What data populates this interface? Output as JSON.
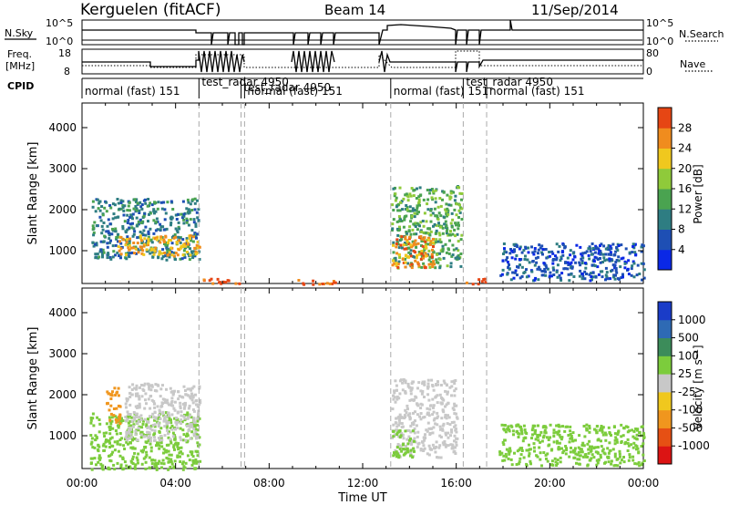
{
  "header": {
    "station": "Kerguelen (fitACF)",
    "beam": "Beam 14",
    "date": "11/Sep/2014"
  },
  "noise_panel": {
    "left_label": "N.Sky",
    "right_label": "N.Search",
    "left_ticks": [
      "10^5",
      "10^0"
    ],
    "right_ticks": [
      "10^5",
      "10^0"
    ]
  },
  "freq_panel": {
    "left_label_1": "Freq.",
    "left_label_2": "[MHz]",
    "right_label": "Nave",
    "left_ticks": [
      "18",
      "8"
    ],
    "right_ticks": [
      "80",
      "0"
    ]
  },
  "cpid": {
    "label": "CPID",
    "segments": [
      {
        "name": "normal (fast) 151",
        "start": 0.0,
        "end": 5.0
      },
      {
        "name": "test_radar 4950",
        "start": 5.0,
        "end": 6.8
      },
      {
        "name": "test_radar 4950",
        "start": 6.8,
        "end": 6.95
      },
      {
        "name": "normal (fast) 151",
        "start": 6.95,
        "end": 13.2
      },
      {
        "name": "normal (fast) 151",
        "start": 13.2,
        "end": 16.3
      },
      {
        "name": "test_radar 4950",
        "start": 16.3,
        "end": 17.3
      },
      {
        "name": "normal (fast) 151",
        "start": 17.3,
        "end": 24.0
      }
    ],
    "boundaries": [
      5.0,
      6.8,
      6.95,
      13.2,
      16.3,
      17.3
    ]
  },
  "chart_data": [
    {
      "type": "heatmap",
      "title": "Power",
      "ylabel": "Slant Range [km]",
      "ylim": [
        200,
        4600
      ],
      "xlim": [
        0,
        24
      ],
      "y_ticks": [
        "1000",
        "2000",
        "3000",
        "4000"
      ],
      "colorbar": {
        "label": "Power [dB]",
        "ticks": [
          "4",
          "8",
          "12",
          "16",
          "20",
          "24",
          "28"
        ],
        "range": [
          0,
          32
        ],
        "colors": [
          "#0a28e6",
          "#1e4fb4",
          "#2e7d82",
          "#4aa350",
          "#8fca3a",
          "#f0c81e",
          "#f08c1e",
          "#e64614"
        ]
      },
      "regions": [
        {
          "t": [
            0.4,
            5.0
          ],
          "r": [
            800,
            2300
          ],
          "value": 10
        },
        {
          "t": [
            1.5,
            5.0
          ],
          "r": [
            900,
            1400
          ],
          "value": 24
        },
        {
          "t": [
            13.2,
            16.2
          ],
          "r": [
            600,
            2600
          ],
          "value": 14
        },
        {
          "t": [
            13.2,
            15.0
          ],
          "r": [
            600,
            1400
          ],
          "value": 26
        },
        {
          "t": [
            17.8,
            24.0
          ],
          "r": [
            300,
            1200
          ],
          "value": 6
        },
        {
          "t": [
            5.1,
            6.8
          ],
          "r": [
            200,
            340
          ],
          "value": 30
        },
        {
          "t": [
            9.2,
            10.8
          ],
          "r": [
            200,
            340
          ],
          "value": 30
        },
        {
          "t": [
            16.3,
            17.3
          ],
          "r": [
            200,
            340
          ],
          "value": 30
        }
      ]
    },
    {
      "type": "heatmap",
      "title": "Velocity",
      "xlabel": "Time UT",
      "ylabel": "Slant Range [km]",
      "ylim": [
        200,
        4600
      ],
      "xlim": [
        0,
        24
      ],
      "y_ticks": [
        "1000",
        "2000",
        "3000",
        "4000"
      ],
      "x_ticks": [
        "00:00",
        "04:00",
        "08:00",
        "12:00",
        "16:00",
        "20:00",
        "00:00"
      ],
      "colorbar": {
        "label": "Velocity [m s⁻¹]",
        "ticks": [
          "1000",
          "500",
          "100",
          "25",
          "-25",
          "-100",
          "-500",
          "-1000"
        ],
        "colors": [
          "#1a3cc8",
          "#2e6ab4",
          "#3c8c5a",
          "#7ccc3c",
          "#c8c8c8",
          "#f0c81e",
          "#f0961e",
          "#e65014",
          "#dc1414"
        ]
      },
      "regions": [
        {
          "t": [
            0.3,
            5.0
          ],
          "r": [
            200,
            1600
          ],
          "value": 40
        },
        {
          "t": [
            1.0,
            1.6
          ],
          "r": [
            1300,
            2300
          ],
          "value": -300
        },
        {
          "t": [
            1.8,
            5.0
          ],
          "r": [
            900,
            2300
          ],
          "value": 5
        },
        {
          "t": [
            13.2,
            16.0
          ],
          "r": [
            500,
            2400
          ],
          "value": 5
        },
        {
          "t": [
            13.2,
            14.2
          ],
          "r": [
            500,
            1200
          ],
          "value": 60
        },
        {
          "t": [
            17.8,
            24.0
          ],
          "r": [
            300,
            1300
          ],
          "value": 50
        }
      ]
    }
  ]
}
